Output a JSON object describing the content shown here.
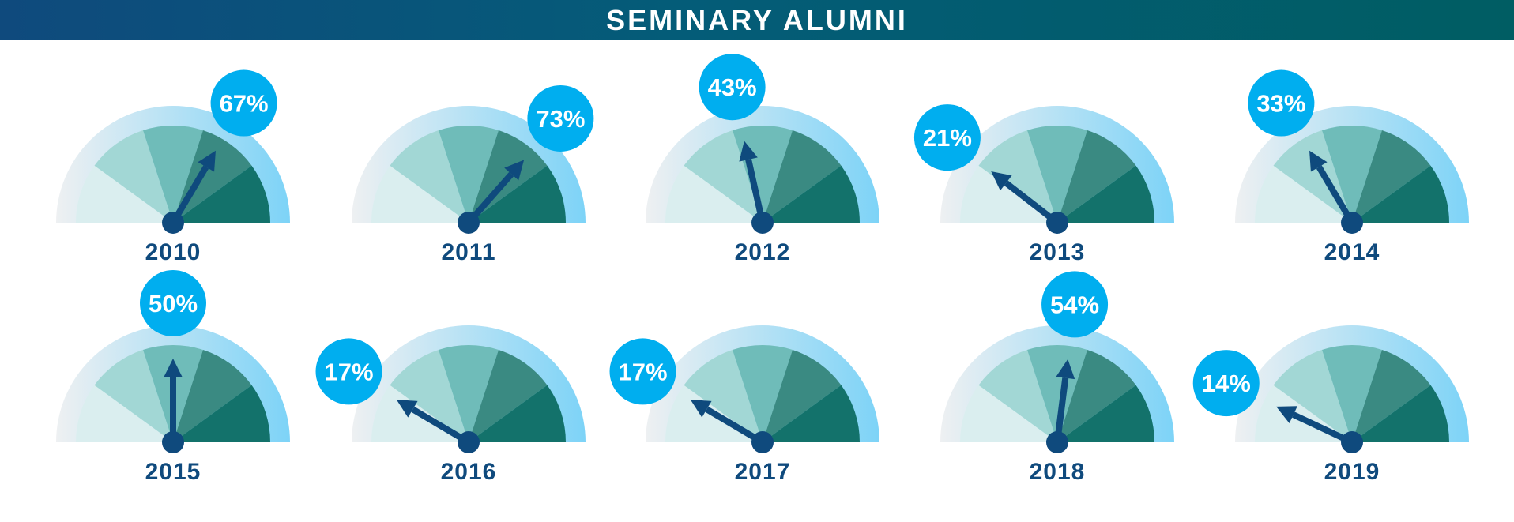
{
  "header": {
    "title": "SEMINARY ALUMNI"
  },
  "colors": {
    "needle": "#0f4a7d",
    "bubble": "#00aeef",
    "band_start": "#eef0f2",
    "band_end": "#7dd3f7",
    "sectors": [
      "#daeeef",
      "#a2d7d5",
      "#6fbcb9",
      "#3a8a82",
      "#13726b"
    ]
  },
  "gauges": [
    {
      "year": "2010",
      "label": "67%",
      "value": 67
    },
    {
      "year": "2011",
      "label": "73%",
      "value": 73
    },
    {
      "year": "2012",
      "label": "43%",
      "value": 43
    },
    {
      "year": "2013",
      "label": "21%",
      "value": 21
    },
    {
      "year": "2014",
      "label": "33%",
      "value": 33
    },
    {
      "year": "2015",
      "label": "50%",
      "value": 50
    },
    {
      "year": "2016",
      "label": "17%",
      "value": 17
    },
    {
      "year": "2017",
      "label": "17%",
      "value": 17
    },
    {
      "year": "2018",
      "label": "54%",
      "value": 54
    },
    {
      "year": "2019",
      "label": "14%",
      "value": 14
    }
  ]
}
